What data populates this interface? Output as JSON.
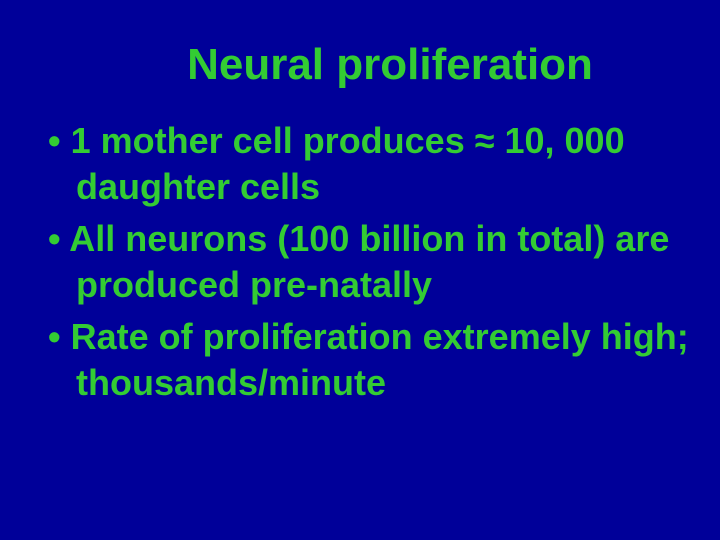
{
  "slide": {
    "background_color": "#000099",
    "text_color": "#33cc33",
    "title_fontsize": 44,
    "body_fontsize": 36,
    "font_family": "Comic Sans MS",
    "title": "Neural proliferation",
    "bullets": [
      "1 mother cell produces ≈ 10, 000 daughter cells",
      "All neurons (100 billion in total) are produced pre-natally",
      "Rate of proliferation extremely high; thousands/minute"
    ]
  }
}
